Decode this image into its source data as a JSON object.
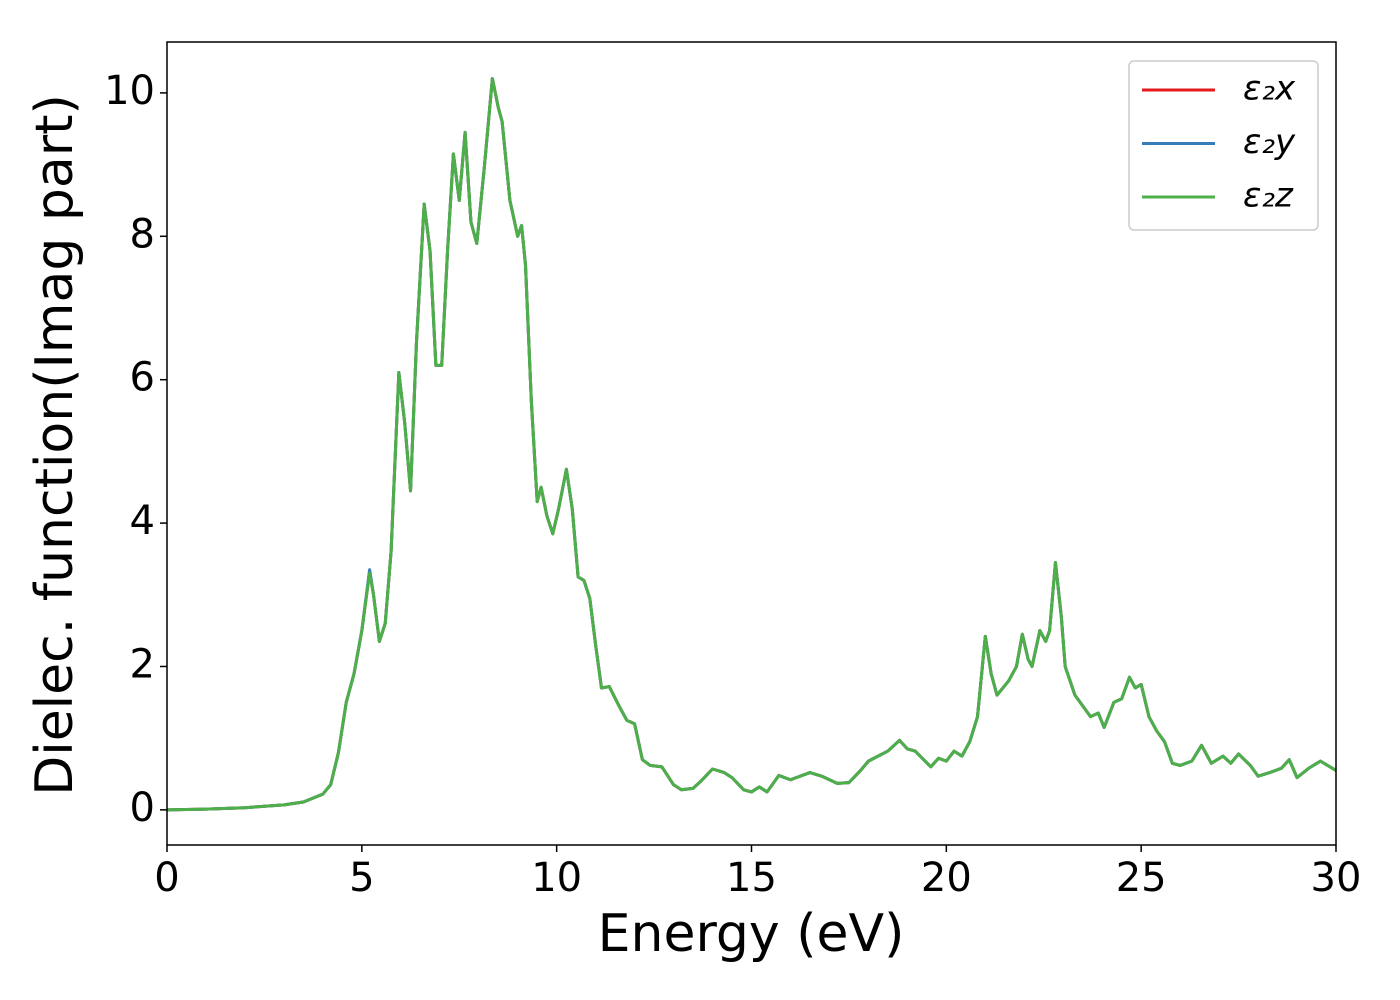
{
  "chart_data": {
    "type": "line",
    "xlabel": "Energy (eV)",
    "ylabel": "Dielec. function(Imag part)",
    "xlim": [
      0,
      30
    ],
    "ylim": [
      -0.49,
      10.71
    ],
    "xticks": [
      0,
      5,
      10,
      15,
      20,
      25,
      30
    ],
    "yticks": [
      0,
      2,
      4,
      6,
      8,
      10
    ],
    "legend": "upper right",
    "x": [
      0,
      1,
      2,
      3,
      3.5,
      4,
      4.2,
      4.4,
      4.6,
      4.8,
      5.0,
      5.2,
      5.3,
      5.45,
      5.6,
      5.75,
      5.95,
      6.1,
      6.25,
      6.4,
      6.6,
      6.75,
      6.9,
      7.05,
      7.2,
      7.35,
      7.5,
      7.65,
      7.8,
      7.95,
      8.15,
      8.35,
      8.5,
      8.6,
      8.8,
      9.0,
      9.1,
      9.2,
      9.35,
      9.5,
      9.6,
      9.75,
      9.9,
      10.05,
      10.25,
      10.4,
      10.55,
      10.7,
      10.85,
      11.0,
      11.15,
      11.35,
      11.6,
      11.8,
      12.0,
      12.2,
      12.4,
      12.7,
      13.0,
      13.2,
      13.5,
      13.7,
      14.0,
      14.3,
      14.5,
      14.8,
      15.0,
      15.2,
      15.4,
      15.7,
      16.0,
      16.5,
      16.8,
      17.2,
      17.5,
      17.8,
      18.0,
      18.5,
      18.8,
      19.0,
      19.2,
      19.6,
      19.8,
      20.0,
      20.2,
      20.4,
      20.6,
      20.8,
      21.0,
      21.15,
      21.3,
      21.6,
      21.8,
      21.95,
      22.1,
      22.2,
      22.4,
      22.55,
      22.65,
      22.8,
      22.95,
      23.05,
      23.3,
      23.5,
      23.7,
      23.9,
      24.05,
      24.3,
      24.5,
      24.7,
      24.85,
      25.0,
      25.2,
      25.4,
      25.6,
      25.8,
      26.0,
      26.3,
      26.55,
      26.8,
      27.1,
      27.3,
      27.5,
      27.8,
      28.0,
      28.3,
      28.6,
      28.8,
      29.0,
      29.3,
      29.6,
      30
    ],
    "series": [
      {
        "name": "ε₂x",
        "color": "#e41a1c",
        "values": [
          0,
          0.01,
          0.03,
          0.07,
          0.11,
          0.22,
          0.35,
          0.8,
          1.5,
          1.9,
          2.5,
          3.33,
          3.0,
          2.35,
          2.6,
          3.6,
          6.1,
          5.4,
          4.45,
          6.5,
          8.45,
          7.8,
          6.2,
          6.2,
          7.8,
          9.15,
          8.5,
          9.45,
          8.2,
          7.9,
          9.0,
          10.2,
          9.8,
          9.6,
          8.5,
          8.0,
          8.15,
          7.6,
          5.7,
          4.3,
          4.5,
          4.1,
          3.85,
          4.2,
          4.75,
          4.2,
          3.25,
          3.2,
          2.95,
          2.3,
          1.7,
          1.72,
          1.45,
          1.25,
          1.2,
          0.7,
          0.62,
          0.6,
          0.35,
          0.28,
          0.3,
          0.4,
          0.57,
          0.52,
          0.45,
          0.28,
          0.25,
          0.32,
          0.25,
          0.48,
          0.42,
          0.52,
          0.47,
          0.37,
          0.38,
          0.55,
          0.68,
          0.82,
          0.97,
          0.85,
          0.82,
          0.6,
          0.72,
          0.68,
          0.82,
          0.75,
          0.95,
          1.3,
          2.42,
          1.9,
          1.6,
          1.8,
          2.0,
          2.45,
          2.1,
          2.0,
          2.5,
          2.35,
          2.5,
          3.45,
          2.7,
          2.0,
          1.6,
          1.45,
          1.3,
          1.35,
          1.15,
          1.5,
          1.55,
          1.85,
          1.7,
          1.75,
          1.3,
          1.1,
          0.95,
          0.65,
          0.62,
          0.68,
          0.9,
          0.65,
          0.75,
          0.65,
          0.78,
          0.62,
          0.47,
          0.52,
          0.58,
          0.7,
          0.45,
          0.58,
          0.68,
          0.55
        ]
      },
      {
        "name": "ε₂y",
        "color": "#377eb8",
        "values": [
          0,
          0.01,
          0.03,
          0.07,
          0.11,
          0.22,
          0.35,
          0.8,
          1.5,
          1.9,
          2.5,
          3.35,
          3.0,
          2.35,
          2.6,
          3.6,
          6.1,
          5.4,
          4.45,
          6.5,
          8.45,
          7.8,
          6.2,
          6.2,
          7.8,
          9.15,
          8.5,
          9.45,
          8.2,
          7.9,
          9.0,
          10.2,
          9.8,
          9.6,
          8.5,
          8.0,
          8.15,
          7.6,
          5.7,
          4.3,
          4.5,
          4.1,
          3.85,
          4.2,
          4.75,
          4.2,
          3.25,
          3.2,
          2.95,
          2.3,
          1.7,
          1.72,
          1.45,
          1.25,
          1.2,
          0.7,
          0.62,
          0.6,
          0.35,
          0.28,
          0.3,
          0.4,
          0.57,
          0.52,
          0.45,
          0.28,
          0.25,
          0.32,
          0.25,
          0.48,
          0.42,
          0.52,
          0.47,
          0.37,
          0.38,
          0.55,
          0.68,
          0.82,
          0.97,
          0.85,
          0.82,
          0.6,
          0.72,
          0.68,
          0.82,
          0.75,
          0.95,
          1.3,
          2.42,
          1.9,
          1.6,
          1.8,
          2.0,
          2.45,
          2.1,
          2.0,
          2.5,
          2.35,
          2.5,
          3.45,
          2.7,
          2.0,
          1.6,
          1.45,
          1.3,
          1.35,
          1.15,
          1.5,
          1.55,
          1.85,
          1.7,
          1.75,
          1.3,
          1.1,
          0.95,
          0.65,
          0.62,
          0.68,
          0.9,
          0.65,
          0.75,
          0.65,
          0.78,
          0.62,
          0.47,
          0.52,
          0.58,
          0.7,
          0.45,
          0.58,
          0.68,
          0.55
        ]
      },
      {
        "name": "ε₂z",
        "color": "#4daf4a",
        "values": [
          0,
          0.01,
          0.03,
          0.07,
          0.11,
          0.22,
          0.35,
          0.8,
          1.5,
          1.9,
          2.5,
          3.3,
          3.0,
          2.35,
          2.6,
          3.6,
          6.1,
          5.4,
          4.45,
          6.5,
          8.45,
          7.8,
          6.2,
          6.2,
          7.8,
          9.15,
          8.5,
          9.45,
          8.2,
          7.9,
          9.0,
          10.2,
          9.8,
          9.6,
          8.5,
          8.0,
          8.15,
          7.6,
          5.7,
          4.3,
          4.5,
          4.1,
          3.85,
          4.2,
          4.75,
          4.2,
          3.25,
          3.2,
          2.95,
          2.3,
          1.7,
          1.72,
          1.45,
          1.25,
          1.2,
          0.7,
          0.62,
          0.6,
          0.35,
          0.28,
          0.3,
          0.4,
          0.57,
          0.52,
          0.45,
          0.28,
          0.25,
          0.32,
          0.25,
          0.48,
          0.42,
          0.52,
          0.47,
          0.37,
          0.38,
          0.55,
          0.68,
          0.82,
          0.97,
          0.85,
          0.82,
          0.6,
          0.72,
          0.68,
          0.82,
          0.75,
          0.95,
          1.3,
          2.42,
          1.9,
          1.6,
          1.8,
          2.0,
          2.45,
          2.1,
          2.0,
          2.5,
          2.35,
          2.5,
          3.45,
          2.7,
          2.0,
          1.6,
          1.45,
          1.3,
          1.35,
          1.15,
          1.5,
          1.55,
          1.85,
          1.7,
          1.75,
          1.3,
          1.1,
          0.95,
          0.65,
          0.62,
          0.68,
          0.9,
          0.65,
          0.75,
          0.65,
          0.78,
          0.62,
          0.47,
          0.52,
          0.58,
          0.7,
          0.45,
          0.58,
          0.68,
          0.55
        ]
      }
    ]
  }
}
